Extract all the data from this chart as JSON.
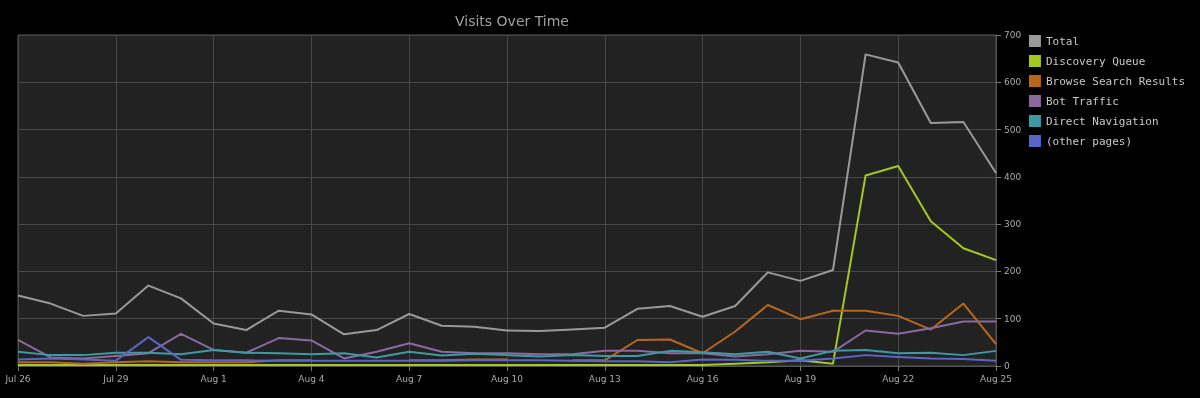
{
  "chart_data": {
    "type": "line",
    "title": "Visits Over Time",
    "categories": [
      "Jul 26",
      null,
      null,
      "Jul 29",
      null,
      null,
      "Aug 1",
      null,
      null,
      "Aug 4",
      null,
      null,
      "Aug 7",
      null,
      null,
      "Aug 10",
      null,
      null,
      "Aug 13",
      null,
      null,
      "Aug 16",
      null,
      null,
      "Aug 19",
      null,
      null,
      "Aug 22",
      null,
      null,
      "Aug 25"
    ],
    "series": [
      {
        "name": "Total",
        "color": "#999999",
        "values": [
          149,
          132,
          106,
          111,
          170,
          143,
          90,
          76,
          117,
          109,
          67,
          76,
          110,
          85,
          83,
          75,
          74,
          77,
          81,
          121,
          127,
          104,
          127,
          198,
          180,
          203,
          659,
          642,
          514,
          516,
          408
        ]
      },
      {
        "name": "Discovery Queue",
        "color": "#a4c81e",
        "values": [
          2,
          2,
          2,
          2,
          2,
          2,
          2,
          2,
          2,
          2,
          2,
          2,
          2,
          2,
          2,
          2,
          2,
          2,
          2,
          2,
          2,
          2,
          5,
          8,
          12,
          5,
          403,
          423,
          306,
          249,
          224
        ]
      },
      {
        "name": "Browse Search Results",
        "color": "#b8661a",
        "values": [
          8,
          8,
          5,
          8,
          10,
          8,
          8,
          8,
          12,
          12,
          null,
          null,
          12,
          12,
          14,
          14,
          null,
          12,
          12,
          55,
          56,
          27,
          73,
          129,
          99,
          117,
          117,
          106,
          77,
          132,
          46
        ]
      },
      {
        "name": "Bot Traffic",
        "color": "#8a6a9e",
        "values": [
          55,
          18,
          16,
          21,
          27,
          68,
          34,
          28,
          59,
          54,
          16,
          30,
          48,
          30,
          27,
          27,
          25,
          25,
          32,
          32,
          27,
          27,
          20,
          25,
          32,
          30,
          75,
          68,
          80,
          94,
          94
        ]
      },
      {
        "name": "Direct Navigation",
        "color": "#3d9aa5",
        "values": [
          30,
          23,
          23,
          28,
          28,
          25,
          34,
          28,
          27,
          25,
          27,
          18,
          30,
          22,
          26,
          23,
          20,
          23,
          21,
          21,
          32,
          29,
          25,
          30,
          16,
          32,
          34,
          27,
          28,
          23,
          32
        ]
      },
      {
        "name": "(other pages)",
        "color": "#5866c8",
        "values": [
          14,
          16,
          14,
          11,
          61,
          13,
          12,
          12,
          11,
          11,
          11,
          11,
          11,
          11,
          12,
          12,
          12,
          11,
          10,
          10,
          8,
          14,
          13,
          11,
          11,
          16,
          23,
          19,
          16,
          15,
          11
        ]
      }
    ],
    "ylim": [
      0,
      700
    ],
    "yticks": [
      0,
      100,
      200,
      300,
      400,
      500,
      600,
      700
    ],
    "grid": true,
    "legend": "right",
    "marker": "none",
    "line_style": "solid"
  }
}
